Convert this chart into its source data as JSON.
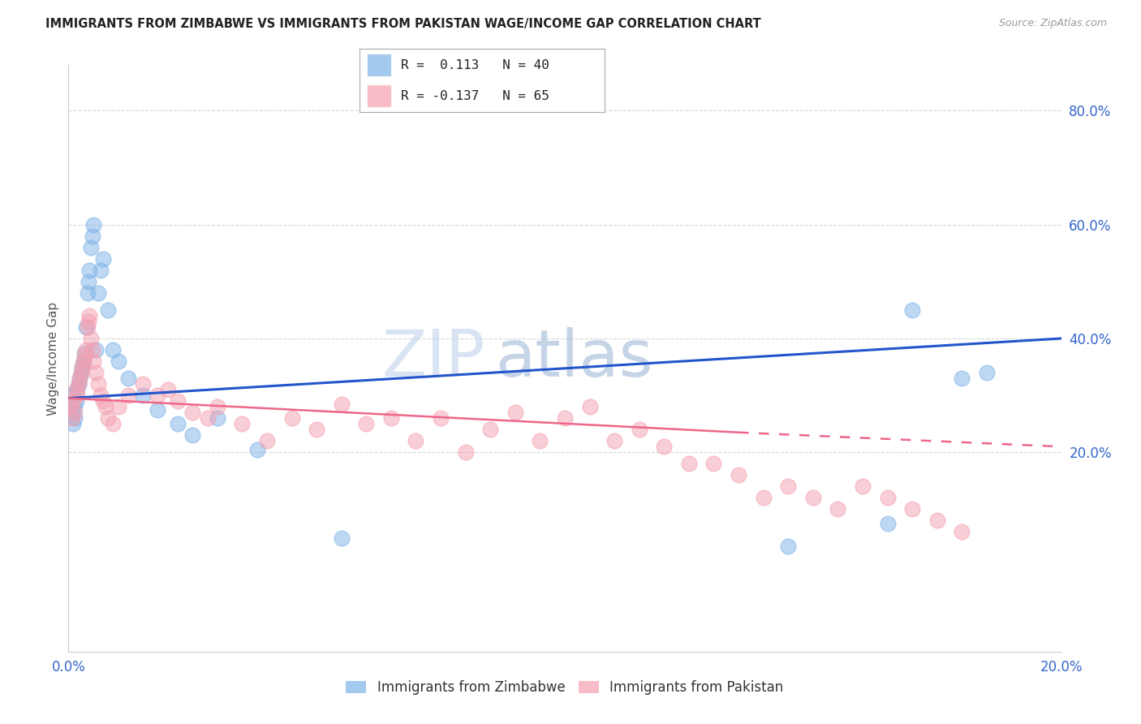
{
  "title": "IMMIGRANTS FROM ZIMBABWE VS IMMIGRANTS FROM PAKISTAN WAGE/INCOME GAP CORRELATION CHART",
  "source": "Source: ZipAtlas.com",
  "ylabel": "Wage/Income Gap",
  "right_yticks": [
    20.0,
    40.0,
    60.0,
    80.0
  ],
  "legend_label1": "Immigrants from Zimbabwe",
  "legend_label2": "Immigrants from Pakistan",
  "color_zimbabwe": "#7EB3E8",
  "color_pakistan": "#F4A0B0",
  "trend_color_zimbabwe": "#2255CC",
  "trend_color_pakistan": "#EE6688",
  "background_color": "#FFFFFF",
  "grid_color": "#CCCCCC",
  "xmin": 0.0,
  "xmax": 20.0,
  "ymin": -15.0,
  "ymax": 88.0,
  "zimbabwe_x": [
    0.05,
    0.08,
    0.1,
    0.12,
    0.13,
    0.15,
    0.18,
    0.2,
    0.22,
    0.25,
    0.28,
    0.3,
    0.32,
    0.35,
    0.38,
    0.4,
    0.42,
    0.45,
    0.48,
    0.5,
    0.55,
    0.6,
    0.65,
    0.7,
    0.8,
    0.9,
    1.0,
    1.2,
    1.5,
    1.8,
    2.2,
    2.5,
    3.0,
    3.8,
    5.5,
    14.5,
    16.5,
    17.0,
    18.0,
    18.5
  ],
  "zimbabwe_y": [
    30.0,
    27.0,
    25.0,
    28.0,
    26.0,
    29.0,
    31.0,
    32.0,
    33.0,
    34.0,
    35.0,
    36.0,
    37.5,
    42.0,
    48.0,
    50.0,
    52.0,
    56.0,
    58.0,
    60.0,
    38.0,
    48.0,
    52.0,
    54.0,
    45.0,
    38.0,
    36.0,
    33.0,
    30.0,
    27.5,
    25.0,
    23.0,
    26.0,
    20.5,
    5.0,
    3.5,
    7.5,
    45.0,
    33.0,
    34.0
  ],
  "pakistan_x": [
    0.05,
    0.08,
    0.1,
    0.12,
    0.15,
    0.18,
    0.2,
    0.22,
    0.25,
    0.28,
    0.3,
    0.32,
    0.35,
    0.38,
    0.4,
    0.42,
    0.45,
    0.48,
    0.5,
    0.55,
    0.6,
    0.65,
    0.7,
    0.75,
    0.8,
    0.9,
    1.0,
    1.2,
    1.5,
    1.8,
    2.0,
    2.2,
    2.5,
    2.8,
    3.0,
    3.5,
    4.0,
    4.5,
    5.0,
    5.5,
    6.0,
    6.5,
    7.0,
    7.5,
    8.0,
    8.5,
    9.0,
    9.5,
    10.0,
    10.5,
    11.0,
    11.5,
    12.0,
    12.5,
    13.0,
    13.5,
    14.0,
    14.5,
    15.0,
    15.5,
    16.0,
    16.5,
    17.0,
    17.5,
    18.0
  ],
  "pakistan_y": [
    28.0,
    26.0,
    29.0,
    27.0,
    31.0,
    30.0,
    32.0,
    33.0,
    34.0,
    35.0,
    36.0,
    37.0,
    38.0,
    42.0,
    43.0,
    44.0,
    40.0,
    38.0,
    36.0,
    34.0,
    32.0,
    30.0,
    29.0,
    28.0,
    26.0,
    25.0,
    28.0,
    30.0,
    32.0,
    30.0,
    31.0,
    29.0,
    27.0,
    26.0,
    28.0,
    25.0,
    22.0,
    26.0,
    24.0,
    28.5,
    25.0,
    26.0,
    22.0,
    26.0,
    20.0,
    24.0,
    27.0,
    22.0,
    26.0,
    28.0,
    22.0,
    24.0,
    21.0,
    18.0,
    18.0,
    16.0,
    12.0,
    14.0,
    12.0,
    10.0,
    14.0,
    12.0,
    10.0,
    8.0,
    6.0
  ],
  "trend_zim_x0": 0.0,
  "trend_zim_y0": 29.5,
  "trend_zim_x1": 20.0,
  "trend_zim_y1": 40.0,
  "trend_pak_solid_x0": 0.0,
  "trend_pak_solid_y0": 29.5,
  "trend_pak_solid_x1": 13.5,
  "trend_pak_solid_y1": 23.5,
  "trend_pak_dash_x0": 13.5,
  "trend_pak_dash_y0": 23.5,
  "trend_pak_dash_x1": 20.0,
  "trend_pak_dash_y1": 21.0
}
